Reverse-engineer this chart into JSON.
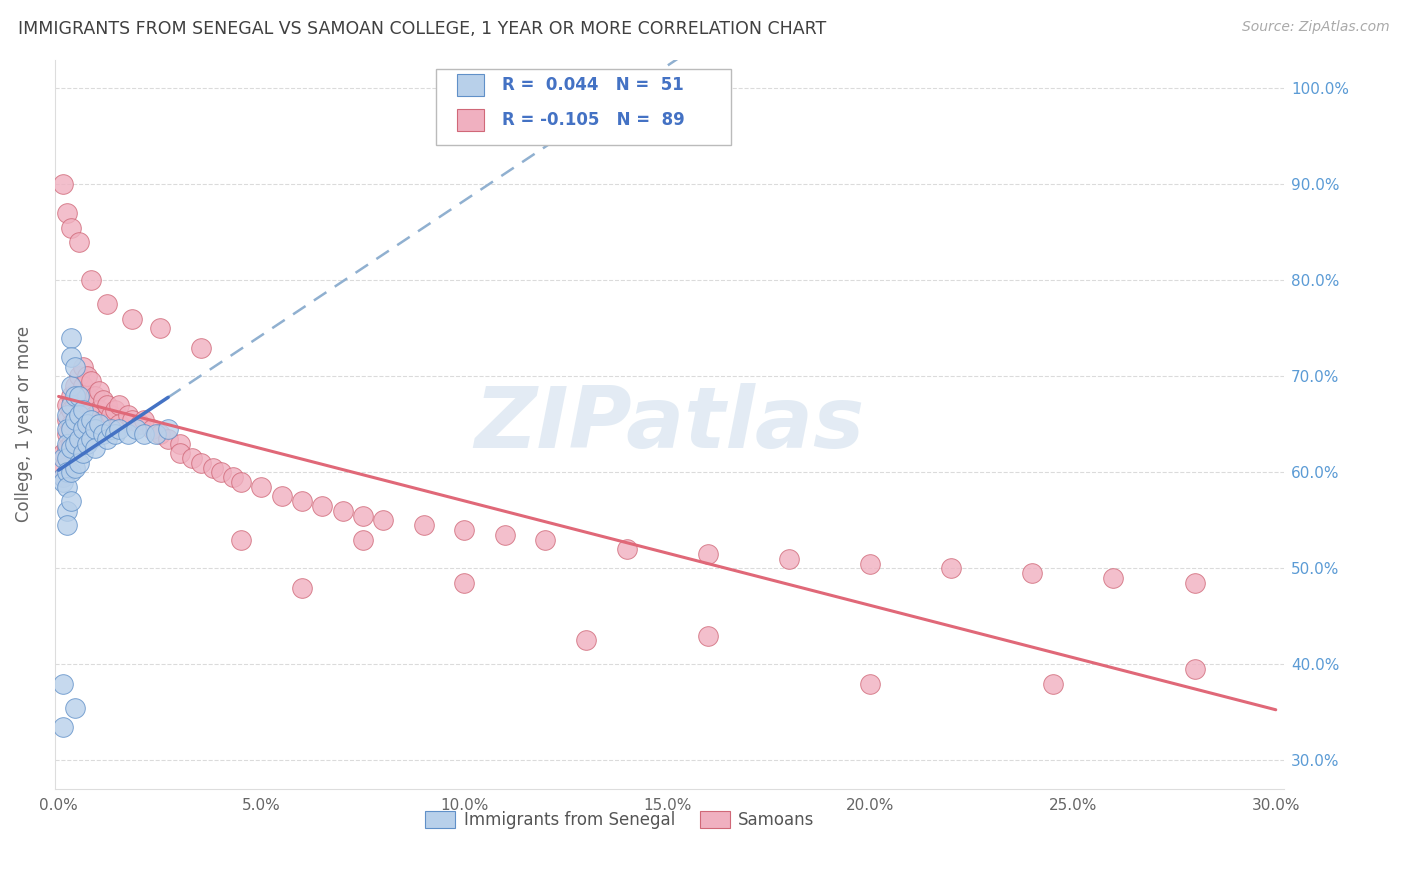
{
  "title": "IMMIGRANTS FROM SENEGAL VS SAMOAN COLLEGE, 1 YEAR OR MORE CORRELATION CHART",
  "source": "Source: ZipAtlas.com",
  "ylabel": "College, 1 year or more",
  "xlim": [
    -0.001,
    0.302
  ],
  "ylim": [
    0.27,
    1.03
  ],
  "xticks": [
    0.0,
    0.05,
    0.1,
    0.15,
    0.2,
    0.25,
    0.3
  ],
  "xtick_labels": [
    "0.0%",
    "5.0%",
    "10.0%",
    "15.0%",
    "20.0%",
    "25.0%",
    "30.0%"
  ],
  "yticks": [
    0.3,
    0.4,
    0.5,
    0.6,
    0.7,
    0.8,
    0.9,
    1.0
  ],
  "ytick_labels": [
    "30.0%",
    "40.0%",
    "50.0%",
    "60.0%",
    "70.0%",
    "80.0%",
    "90.0%",
    "100.0%"
  ],
  "R1": "0.044",
  "N1": "51",
  "R2": "-0.105",
  "N2": "89",
  "legend_label1": "Immigrants from Senegal",
  "legend_label2": "Samoans",
  "color_blue_fill": "#b8d0ea",
  "color_blue_edge": "#6090c8",
  "color_blue_line": "#4472c4",
  "color_blue_dashed": "#90b0d0",
  "color_pink_fill": "#f0b0c0",
  "color_pink_edge": "#d06878",
  "color_pink_line": "#e06878",
  "color_legend_text": "#4472c4",
  "color_grid": "#cccccc",
  "color_title": "#404040",
  "color_right_tick": "#5b9bd5",
  "watermark_color": "#ccdcec",
  "watermark": "ZIPatlas",
  "senegal_x": [
    0.001,
    0.001,
    0.001,
    0.002,
    0.002,
    0.002,
    0.002,
    0.002,
    0.002,
    0.003,
    0.003,
    0.003,
    0.003,
    0.003,
    0.003,
    0.003,
    0.004,
    0.004,
    0.004,
    0.004,
    0.004,
    0.005,
    0.005,
    0.005,
    0.005,
    0.006,
    0.006,
    0.006,
    0.007,
    0.007,
    0.008,
    0.008,
    0.009,
    0.009,
    0.01,
    0.011,
    0.012,
    0.013,
    0.014,
    0.015,
    0.017,
    0.019,
    0.021,
    0.024,
    0.027,
    0.001,
    0.001,
    0.002,
    0.002,
    0.003,
    0.004
  ],
  "senegal_y": [
    0.595,
    0.615,
    0.59,
    0.66,
    0.645,
    0.63,
    0.615,
    0.6,
    0.585,
    0.74,
    0.72,
    0.69,
    0.67,
    0.645,
    0.625,
    0.6,
    0.71,
    0.68,
    0.655,
    0.63,
    0.605,
    0.68,
    0.66,
    0.635,
    0.61,
    0.665,
    0.645,
    0.62,
    0.65,
    0.63,
    0.655,
    0.635,
    0.645,
    0.625,
    0.65,
    0.64,
    0.635,
    0.645,
    0.64,
    0.645,
    0.64,
    0.645,
    0.64,
    0.64,
    0.645,
    0.38,
    0.335,
    0.56,
    0.545,
    0.57,
    0.355
  ],
  "samoan_x": [
    0.001,
    0.001,
    0.001,
    0.002,
    0.002,
    0.002,
    0.002,
    0.003,
    0.003,
    0.003,
    0.003,
    0.004,
    0.004,
    0.004,
    0.005,
    0.005,
    0.005,
    0.006,
    0.006,
    0.006,
    0.007,
    0.007,
    0.007,
    0.008,
    0.008,
    0.009,
    0.009,
    0.01,
    0.01,
    0.011,
    0.011,
    0.012,
    0.012,
    0.013,
    0.014,
    0.015,
    0.015,
    0.017,
    0.018,
    0.02,
    0.021,
    0.023,
    0.025,
    0.027,
    0.03,
    0.03,
    0.033,
    0.035,
    0.038,
    0.04,
    0.043,
    0.045,
    0.05,
    0.055,
    0.06,
    0.065,
    0.07,
    0.075,
    0.08,
    0.09,
    0.1,
    0.11,
    0.12,
    0.14,
    0.16,
    0.18,
    0.2,
    0.22,
    0.24,
    0.26,
    0.28,
    0.001,
    0.002,
    0.003,
    0.005,
    0.008,
    0.012,
    0.018,
    0.025,
    0.035,
    0.045,
    0.06,
    0.075,
    0.1,
    0.13,
    0.16,
    0.2,
    0.245,
    0.28
  ],
  "samoan_y": [
    0.62,
    0.605,
    0.595,
    0.67,
    0.655,
    0.64,
    0.625,
    0.68,
    0.665,
    0.65,
    0.63,
    0.69,
    0.67,
    0.65,
    0.7,
    0.68,
    0.66,
    0.71,
    0.69,
    0.665,
    0.7,
    0.68,
    0.655,
    0.695,
    0.67,
    0.68,
    0.66,
    0.685,
    0.665,
    0.675,
    0.655,
    0.67,
    0.65,
    0.66,
    0.665,
    0.67,
    0.65,
    0.66,
    0.655,
    0.65,
    0.655,
    0.645,
    0.64,
    0.635,
    0.63,
    0.62,
    0.615,
    0.61,
    0.605,
    0.6,
    0.595,
    0.59,
    0.585,
    0.575,
    0.57,
    0.565,
    0.56,
    0.555,
    0.55,
    0.545,
    0.54,
    0.535,
    0.53,
    0.52,
    0.515,
    0.51,
    0.505,
    0.5,
    0.495,
    0.49,
    0.485,
    0.9,
    0.87,
    0.855,
    0.84,
    0.8,
    0.775,
    0.76,
    0.75,
    0.73,
    0.53,
    0.48,
    0.53,
    0.485,
    0.425,
    0.43,
    0.38,
    0.38,
    0.395
  ]
}
